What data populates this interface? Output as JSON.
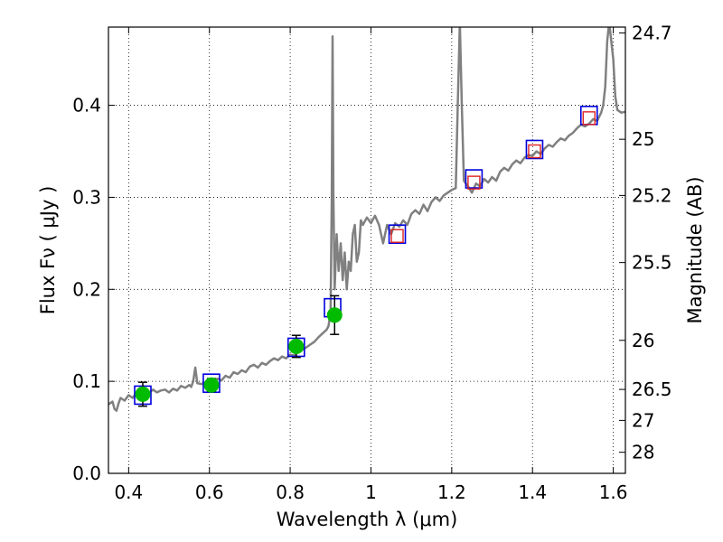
{
  "chart_data": {
    "type": "scatter",
    "xlabel": "Wavelength  λ (μm)",
    "ylabel": "Flux  Fν  ( μJy )",
    "y2label": "Magnitude (AB)",
    "xlim": [
      0.35,
      1.63
    ],
    "ylim": [
      0.0,
      0.485
    ],
    "grid": true,
    "x_ticks": [
      {
        "value": 0.4,
        "label": "0.4"
      },
      {
        "value": 0.6,
        "label": "0.6"
      },
      {
        "value": 0.8,
        "label": "0.8"
      },
      {
        "value": 1.0,
        "label": "1"
      },
      {
        "value": 1.2,
        "label": "1.2"
      },
      {
        "value": 1.4,
        "label": "1.4"
      },
      {
        "value": 1.6,
        "label": "1.6"
      }
    ],
    "y_ticks": [
      {
        "value": 0.0,
        "label": "0.0"
      },
      {
        "value": 0.1,
        "label": "0.1"
      },
      {
        "value": 0.2,
        "label": "0.2"
      },
      {
        "value": 0.3,
        "label": "0.3"
      },
      {
        "value": 0.4,
        "label": "0.4"
      }
    ],
    "magnitude_ticks": [
      {
        "value": 24.7,
        "label": "24.7"
      },
      {
        "value": 25.0,
        "label": "25"
      },
      {
        "value": 25.2,
        "label": "25.2"
      },
      {
        "value": 25.5,
        "label": "25.5"
      },
      {
        "value": 26.0,
        "label": "26"
      },
      {
        "value": 26.5,
        "label": "26.5"
      },
      {
        "value": 27.0,
        "label": "27"
      },
      {
        "value": 28.0,
        "label": "28"
      }
    ],
    "colors": {
      "spectrum": "#808080",
      "observed": "#00bb00",
      "model": "#0000dd",
      "predicted": "#dd2222"
    },
    "model_spectrum": [
      [
        0.35,
        0.075
      ],
      [
        0.36,
        0.078
      ],
      [
        0.365,
        0.07
      ],
      [
        0.37,
        0.068
      ],
      [
        0.375,
        0.076
      ],
      [
        0.38,
        0.082
      ],
      [
        0.39,
        0.079
      ],
      [
        0.4,
        0.085
      ],
      [
        0.41,
        0.082
      ],
      [
        0.42,
        0.088
      ],
      [
        0.43,
        0.086
      ],
      [
        0.44,
        0.092
      ],
      [
        0.45,
        0.087
      ],
      [
        0.46,
        0.091
      ],
      [
        0.47,
        0.088
      ],
      [
        0.48,
        0.09
      ],
      [
        0.49,
        0.091
      ],
      [
        0.5,
        0.088
      ],
      [
        0.51,
        0.092
      ],
      [
        0.52,
        0.09
      ],
      [
        0.53,
        0.095
      ],
      [
        0.54,
        0.093
      ],
      [
        0.55,
        0.096
      ],
      [
        0.555,
        0.094
      ],
      [
        0.56,
        0.1
      ],
      [
        0.565,
        0.115
      ],
      [
        0.57,
        0.098
      ],
      [
        0.58,
        0.097
      ],
      [
        0.59,
        0.099
      ],
      [
        0.6,
        0.098
      ],
      [
        0.61,
        0.1
      ],
      [
        0.62,
        0.103
      ],
      [
        0.63,
        0.101
      ],
      [
        0.64,
        0.106
      ],
      [
        0.65,
        0.104
      ],
      [
        0.66,
        0.11
      ],
      [
        0.67,
        0.108
      ],
      [
        0.68,
        0.112
      ],
      [
        0.69,
        0.11
      ],
      [
        0.7,
        0.116
      ],
      [
        0.71,
        0.118
      ],
      [
        0.72,
        0.115
      ],
      [
        0.73,
        0.12
      ],
      [
        0.74,
        0.118
      ],
      [
        0.75,
        0.122
      ],
      [
        0.76,
        0.125
      ],
      [
        0.77,
        0.123
      ],
      [
        0.78,
        0.127
      ],
      [
        0.79,
        0.125
      ],
      [
        0.8,
        0.129
      ],
      [
        0.81,
        0.128
      ],
      [
        0.82,
        0.132
      ],
      [
        0.83,
        0.134
      ],
      [
        0.84,
        0.137
      ],
      [
        0.85,
        0.14
      ],
      [
        0.86,
        0.143
      ],
      [
        0.87,
        0.148
      ],
      [
        0.88,
        0.152
      ],
      [
        0.89,
        0.156
      ],
      [
        0.895,
        0.16
      ],
      [
        0.9,
        0.175
      ],
      [
        0.903,
        0.3
      ],
      [
        0.905,
        0.475
      ],
      [
        0.907,
        0.3
      ],
      [
        0.91,
        0.2
      ],
      [
        0.915,
        0.26
      ],
      [
        0.92,
        0.22
      ],
      [
        0.925,
        0.25
      ],
      [
        0.93,
        0.21
      ],
      [
        0.935,
        0.24
      ],
      [
        0.94,
        0.2
      ],
      [
        0.945,
        0.23
      ],
      [
        0.95,
        0.22
      ],
      [
        0.955,
        0.26
      ],
      [
        0.96,
        0.27
      ],
      [
        0.965,
        0.23
      ],
      [
        0.97,
        0.24
      ],
      [
        0.975,
        0.275
      ],
      [
        0.98,
        0.27
      ],
      [
        0.99,
        0.278
      ],
      [
        1.0,
        0.272
      ],
      [
        1.01,
        0.28
      ],
      [
        1.02,
        0.27
      ],
      [
        1.03,
        0.25
      ],
      [
        1.04,
        0.27
      ],
      [
        1.05,
        0.26
      ],
      [
        1.06,
        0.272
      ],
      [
        1.07,
        0.268
      ],
      [
        1.08,
        0.275
      ],
      [
        1.09,
        0.27
      ],
      [
        1.1,
        0.282
      ],
      [
        1.11,
        0.286
      ],
      [
        1.12,
        0.282
      ],
      [
        1.13,
        0.292
      ],
      [
        1.14,
        0.285
      ],
      [
        1.15,
        0.295
      ],
      [
        1.16,
        0.3
      ],
      [
        1.17,
        0.296
      ],
      [
        1.18,
        0.302
      ],
      [
        1.19,
        0.305
      ],
      [
        1.2,
        0.308
      ],
      [
        1.21,
        0.31
      ],
      [
        1.215,
        0.4
      ],
      [
        1.22,
        0.49
      ],
      [
        1.225,
        0.4
      ],
      [
        1.23,
        0.318
      ],
      [
        1.24,
        0.312
      ],
      [
        1.25,
        0.305
      ],
      [
        1.26,
        0.315
      ],
      [
        1.27,
        0.312
      ],
      [
        1.28,
        0.32
      ],
      [
        1.29,
        0.316
      ],
      [
        1.3,
        0.322
      ],
      [
        1.31,
        0.318
      ],
      [
        1.32,
        0.328
      ],
      [
        1.33,
        0.332
      ],
      [
        1.34,
        0.329
      ],
      [
        1.35,
        0.336
      ],
      [
        1.36,
        0.34
      ],
      [
        1.37,
        0.337
      ],
      [
        1.38,
        0.343
      ],
      [
        1.39,
        0.346
      ],
      [
        1.4,
        0.345
      ],
      [
        1.41,
        0.35
      ],
      [
        1.42,
        0.347
      ],
      [
        1.43,
        0.353
      ],
      [
        1.44,
        0.357
      ],
      [
        1.45,
        0.355
      ],
      [
        1.46,
        0.36
      ],
      [
        1.47,
        0.364
      ],
      [
        1.48,
        0.362
      ],
      [
        1.49,
        0.367
      ],
      [
        1.5,
        0.37
      ],
      [
        1.51,
        0.375
      ],
      [
        1.52,
        0.379
      ],
      [
        1.53,
        0.377
      ],
      [
        1.54,
        0.38
      ],
      [
        1.55,
        0.385
      ],
      [
        1.56,
        0.383
      ],
      [
        1.57,
        0.392
      ],
      [
        1.575,
        0.4
      ],
      [
        1.58,
        0.42
      ],
      [
        1.585,
        0.47
      ],
      [
        1.59,
        0.49
      ],
      [
        1.6,
        0.45
      ],
      [
        1.605,
        0.41
      ],
      [
        1.61,
        0.395
      ],
      [
        1.62,
        0.392
      ],
      [
        1.63,
        0.393
      ]
    ],
    "observed_points": [
      {
        "x": 0.435,
        "y": 0.086,
        "err": 0.013
      },
      {
        "x": 0.605,
        "y": 0.096,
        "err": 0.007
      },
      {
        "x": 0.815,
        "y": 0.138,
        "err": 0.012
      },
      {
        "x": 0.91,
        "y": 0.172,
        "err": 0.021
      }
    ],
    "model_points": [
      {
        "x": 0.435,
        "y": 0.085
      },
      {
        "x": 0.605,
        "y": 0.098
      },
      {
        "x": 0.815,
        "y": 0.137
      },
      {
        "x": 0.905,
        "y": 0.18
      },
      {
        "x": 1.065,
        "y": 0.26
      },
      {
        "x": 1.255,
        "y": 0.32
      },
      {
        "x": 1.405,
        "y": 0.352
      },
      {
        "x": 1.54,
        "y": 0.389
      }
    ],
    "predicted_points": [
      {
        "x": 1.065,
        "y": 0.258
      },
      {
        "x": 1.255,
        "y": 0.316
      },
      {
        "x": 1.405,
        "y": 0.35
      },
      {
        "x": 1.54,
        "y": 0.386
      }
    ]
  }
}
